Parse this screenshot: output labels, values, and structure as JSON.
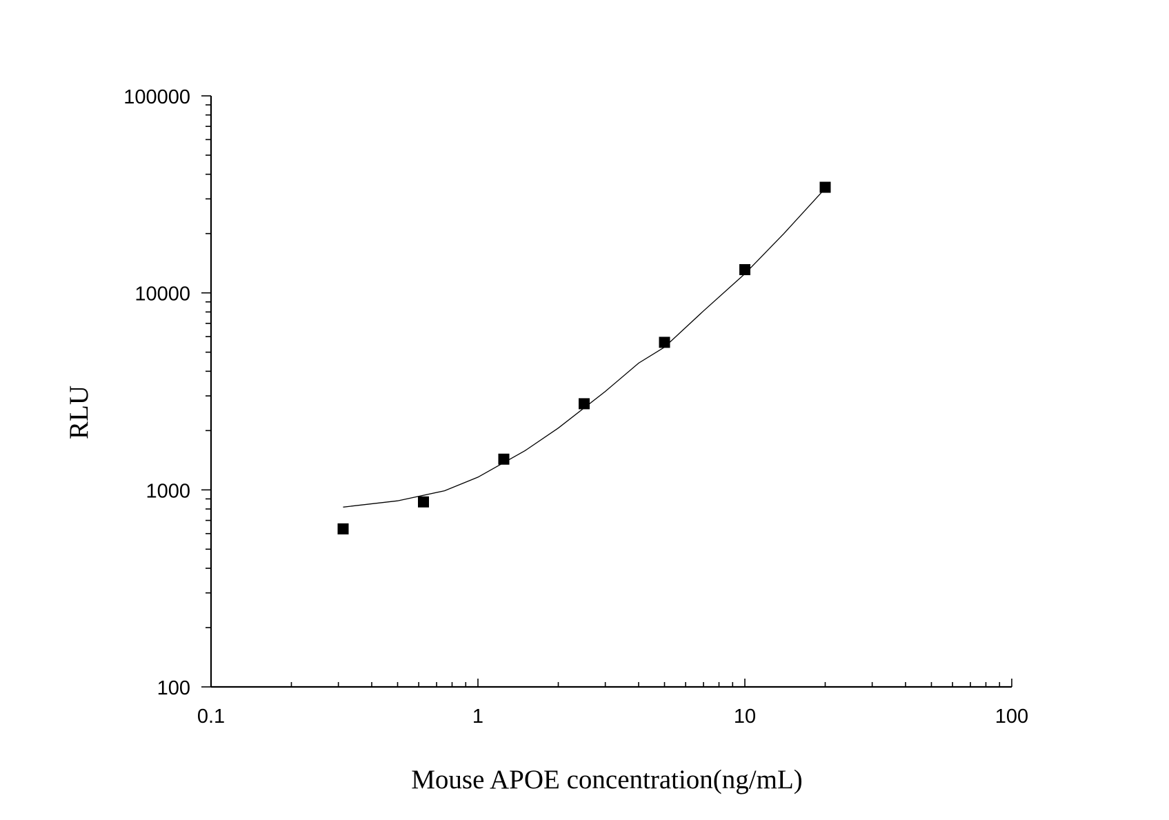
{
  "chart_data": {
    "type": "scatter",
    "xlabel": "Mouse APOE concentration(ng/mL)",
    "ylabel": "RLU",
    "xscale": "log",
    "yscale": "log",
    "xlim": [
      0.1,
      100
    ],
    "ylim": [
      100,
      100000
    ],
    "xticks": [
      "0.1",
      "1",
      "10",
      "100"
    ],
    "yticks": [
      "100",
      "1000",
      "10000",
      "100000"
    ],
    "grid": false,
    "marker": "square",
    "color": "#000000",
    "points": {
      "x": [
        0.3125,
        0.625,
        1.25,
        2.5,
        5,
        10,
        20
      ],
      "y": [
        634,
        869,
        1432,
        2737,
        5610,
        13120,
        34360
      ]
    },
    "fit_curve": {
      "x": [
        0.3125,
        0.5,
        0.75,
        1,
        1.5,
        2,
        3,
        4,
        5,
        7,
        10,
        14,
        20
      ],
      "y": [
        818,
        880,
        990,
        1160,
        1580,
        2060,
        3160,
        4400,
        5300,
        8100,
        12500,
        20000,
        33900
      ]
    }
  }
}
